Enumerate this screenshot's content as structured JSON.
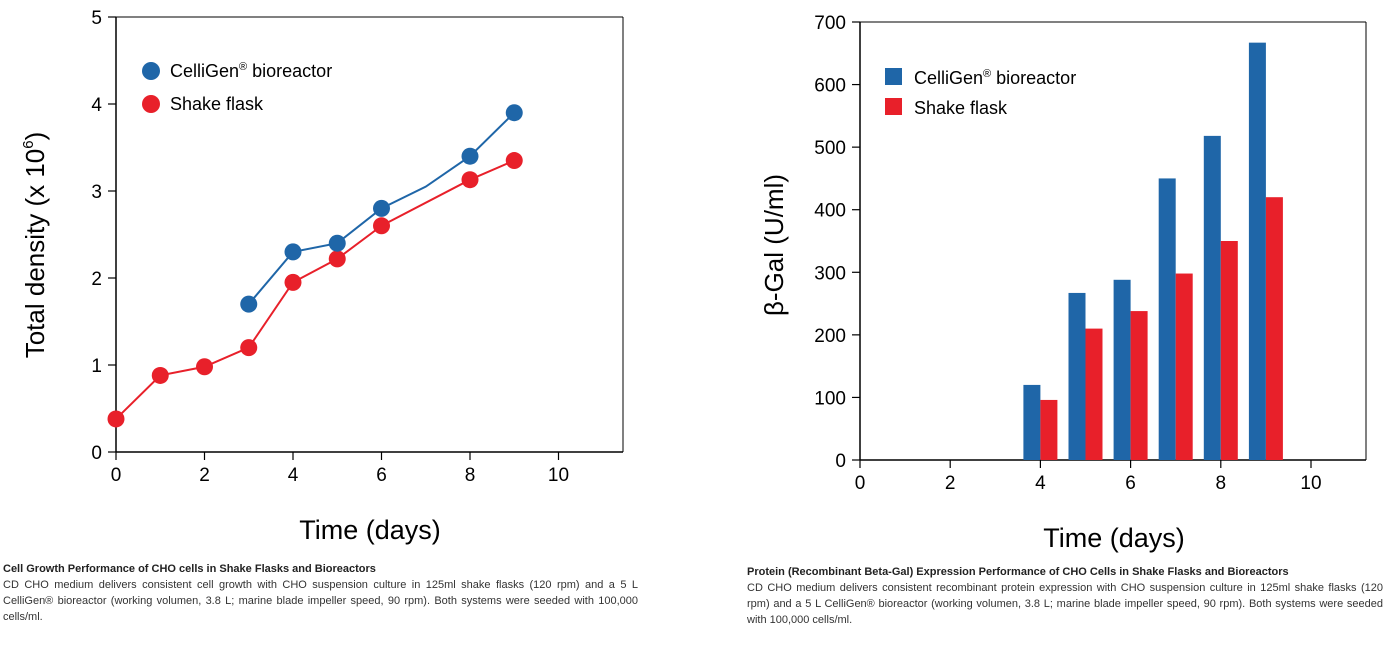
{
  "chart_data": [
    {
      "type": "line",
      "xlabel": "Time (days)",
      "ylabel": "Total density (x 10⁶)",
      "xlim": [
        0,
        11.5
      ],
      "ylim": [
        0,
        5
      ],
      "x_ticks": [
        0,
        2,
        4,
        6,
        8,
        10
      ],
      "y_ticks": [
        0,
        1,
        2,
        3,
        4,
        5
      ],
      "legend_position": "top-left",
      "series": [
        {
          "name": "CelliGen® bioreactor",
          "color": "#1f66a8",
          "x": [
            3,
            4,
            5,
            6,
            7,
            8,
            9
          ],
          "y": [
            1.7,
            2.3,
            2.4,
            2.8,
            3.05,
            3.4,
            3.9
          ],
          "marker_points": [
            0,
            1,
            2,
            3,
            5,
            6
          ]
        },
        {
          "name": "Shake flask",
          "color": "#e8202a",
          "x": [
            0,
            1,
            2,
            3,
            4,
            5,
            6,
            8,
            9
          ],
          "y": [
            0.38,
            0.88,
            0.98,
            1.2,
            1.95,
            2.22,
            2.6,
            3.13,
            3.35
          ]
        }
      ]
    },
    {
      "type": "bar",
      "xlabel": "Time (days)",
      "ylabel": "β-Gal (U/ml)",
      "xlim": [
        0,
        11.5
      ],
      "ylim": [
        0,
        700
      ],
      "x_ticks": [
        0,
        2,
        4,
        6,
        8,
        10
      ],
      "y_ticks": [
        0,
        100,
        200,
        300,
        400,
        500,
        600,
        700
      ],
      "legend_position": "top-left",
      "x": [
        4,
        5,
        6,
        7,
        8,
        9
      ],
      "series": [
        {
          "name": "CelliGen® bioreactor",
          "color": "#1f66a8",
          "values": [
            120,
            267,
            288,
            450,
            518,
            667
          ]
        },
        {
          "name": "Shake flask",
          "color": "#e8202a",
          "values": [
            96,
            210,
            238,
            298,
            350,
            420
          ]
        }
      ]
    }
  ],
  "captions": {
    "left": {
      "title": "Cell Growth Performance of CHO cells in Shake Flasks and Bioreactors",
      "body": "CD CHO medium delivers consistent cell growth with CHO suspension culture in 125ml shake flasks (120 rpm) and a 5 L CelliGen® bioreactor (working volumen, 3.8 L; marine blade impeller speed, 90 rpm). Both systems were seeded with 100,000 cells/ml."
    },
    "right": {
      "title": "Protein (Recombinant Beta-Gal) Expression Performance of CHO Cells in Shake Flasks and Bioreactors",
      "body": "CD CHO medium delivers consistent recombinant protein expression with CHO suspension culture in 125ml shake flasks (120 rpm) and a 5 L CelliGen® bioreactor (working volumen, 3.8 L; marine blade impeller speed, 90 rpm). Both systems were seeded with 100,000 cells/ml."
    }
  }
}
